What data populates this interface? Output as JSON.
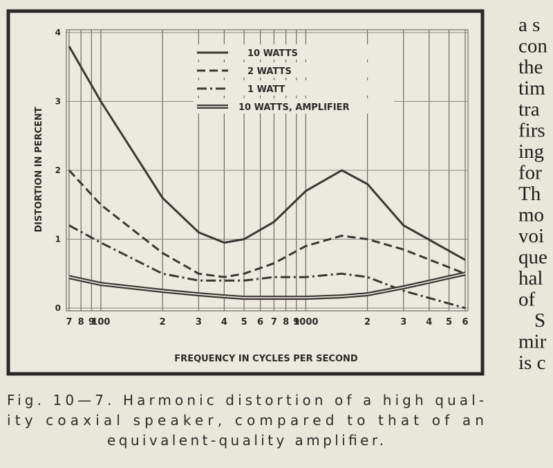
{
  "chart_data": {
    "type": "line",
    "xlabel": "FREQUENCY IN CYCLES PER SECOND",
    "ylabel": "DISTORTION IN PERCENT",
    "x": [
      70,
      100,
      200,
      300,
      400,
      500,
      700,
      1000,
      1500,
      2000,
      3000,
      6000
    ],
    "series": [
      {
        "name": "10 WATTS",
        "color": "#3a3632",
        "style": "solid",
        "values": [
          3.8,
          3.0,
          1.6,
          1.1,
          0.95,
          1.0,
          1.25,
          1.7,
          2.0,
          1.8,
          1.2,
          0.7
        ]
      },
      {
        "name": "2 WATTS",
        "color": "#3a3632",
        "style": "dashed",
        "values": [
          2.0,
          1.5,
          0.8,
          0.5,
          0.45,
          0.5,
          0.65,
          0.9,
          1.05,
          1.0,
          0.85,
          0.5
        ]
      },
      {
        "name": "1 WATT",
        "color": "#3a3632",
        "style": "dashdot",
        "values": [
          1.2,
          0.95,
          0.5,
          0.4,
          0.4,
          0.4,
          0.45,
          0.45,
          0.5,
          0.45,
          0.25,
          0
        ]
      },
      {
        "name": "10 WATTS, AMPLIFIER",
        "color": "#3a3632",
        "style": "double",
        "values": [
          0.45,
          0.35,
          0.25,
          0.2,
          0.17,
          0.15,
          0.15,
          0.15,
          0.17,
          0.2,
          0.3,
          0.5
        ]
      }
    ],
    "xscale": "log",
    "xlim": [
      70,
      6000
    ],
    "xticks": [
      {
        "value": 70,
        "label": "7"
      },
      {
        "value": 80,
        "label": "8"
      },
      {
        "value": 90,
        "label": "9"
      },
      {
        "value": 100,
        "label": "100"
      },
      {
        "value": 200,
        "label": "2"
      },
      {
        "value": 300,
        "label": "3"
      },
      {
        "value": 400,
        "label": "4"
      },
      {
        "value": 500,
        "label": "5"
      },
      {
        "value": 600,
        "label": "6"
      },
      {
        "value": 700,
        "label": "7"
      },
      {
        "value": 800,
        "label": "8"
      },
      {
        "value": 900,
        "label": "9"
      },
      {
        "value": 1000,
        "label": "1000"
      },
      {
        "value": 2000,
        "label": "2"
      },
      {
        "value": 3000,
        "label": "3"
      },
      {
        "value": 4000,
        "label": "4"
      },
      {
        "value": 5000,
        "label": "5"
      },
      {
        "value": 6000,
        "label": "6"
      }
    ],
    "ylim": [
      0,
      4
    ],
    "yticks": [
      0,
      1,
      2,
      3,
      4
    ],
    "grid": true
  },
  "caption": [
    "Fig. 10—7. Harmonic distortion of a high qual-",
    "ity coaxial speaker, compared to that of an",
    "equivalent-quality amplifier."
  ],
  "side_text": [
    "a s",
    "con",
    "the",
    "tim",
    "tra",
    "firs",
    "ing",
    "for",
    "Th",
    "mo",
    "voi",
    "que",
    "hal",
    "of",
    "S",
    "mir",
    "is c"
  ]
}
